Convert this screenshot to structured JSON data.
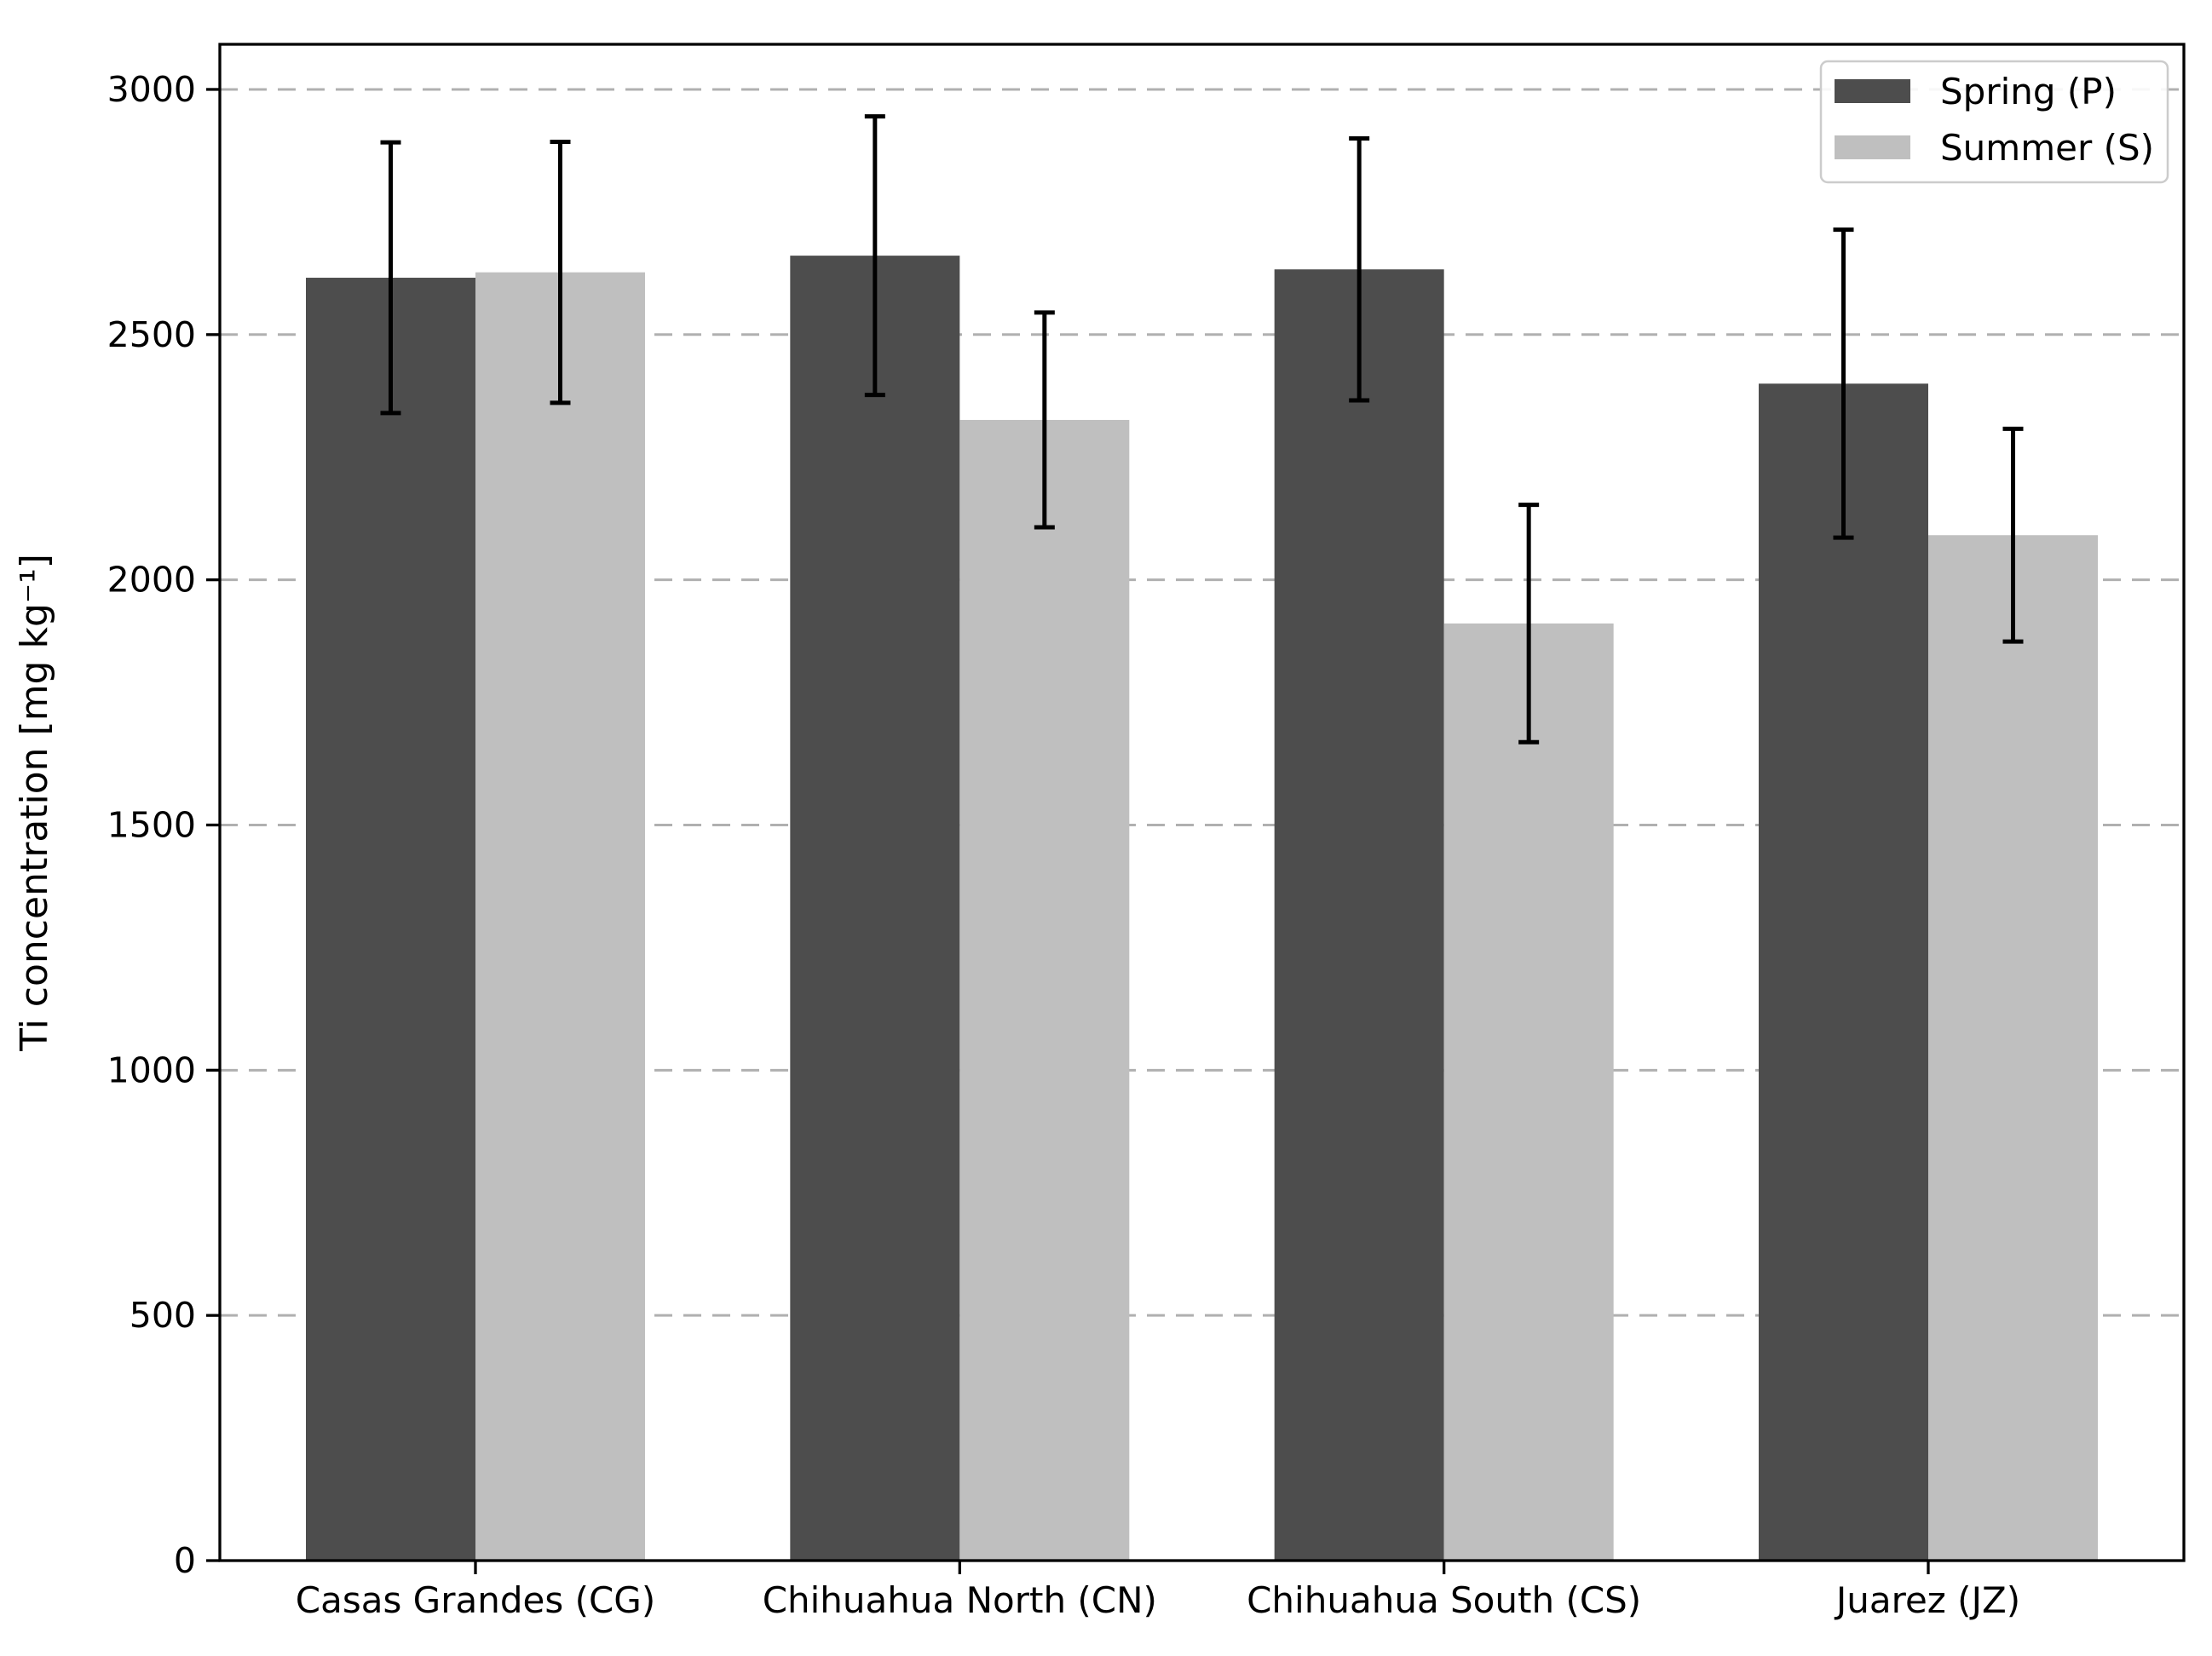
{
  "chart_data": {
    "type": "bar",
    "title": "",
    "xlabel": "",
    "ylabel": "Ti concentration [mg kg⁻¹]",
    "ylim": [
      0,
      3092
    ],
    "yticks": [
      0,
      500,
      1000,
      1500,
      2000,
      2500,
      3000
    ],
    "grid": "horizontal-dashed",
    "legend_position": "upper-right",
    "categories": [
      "Casas Grandes (CG)",
      "Chihuahua North (CN)",
      "Chihuahua South (CS)",
      "Juarez (JZ)"
    ],
    "series": [
      {
        "name": "Spring (P)",
        "color": "#4d4d4d",
        "values": [
          2616,
          2661,
          2633,
          2400
        ],
        "errors": [
          276,
          284,
          267,
          314
        ]
      },
      {
        "name": "Summer (S)",
        "color": "#bfbfbf",
        "values": [
          2627,
          2326,
          1911,
          2091
        ],
        "errors": [
          266,
          219,
          242,
          217
        ]
      }
    ],
    "error_bar_color": "#000000",
    "grid_color": "#b0b0b0",
    "axis_color": "#000000",
    "legend_border_color": "#cccccc",
    "background_color": "#ffffff"
  }
}
